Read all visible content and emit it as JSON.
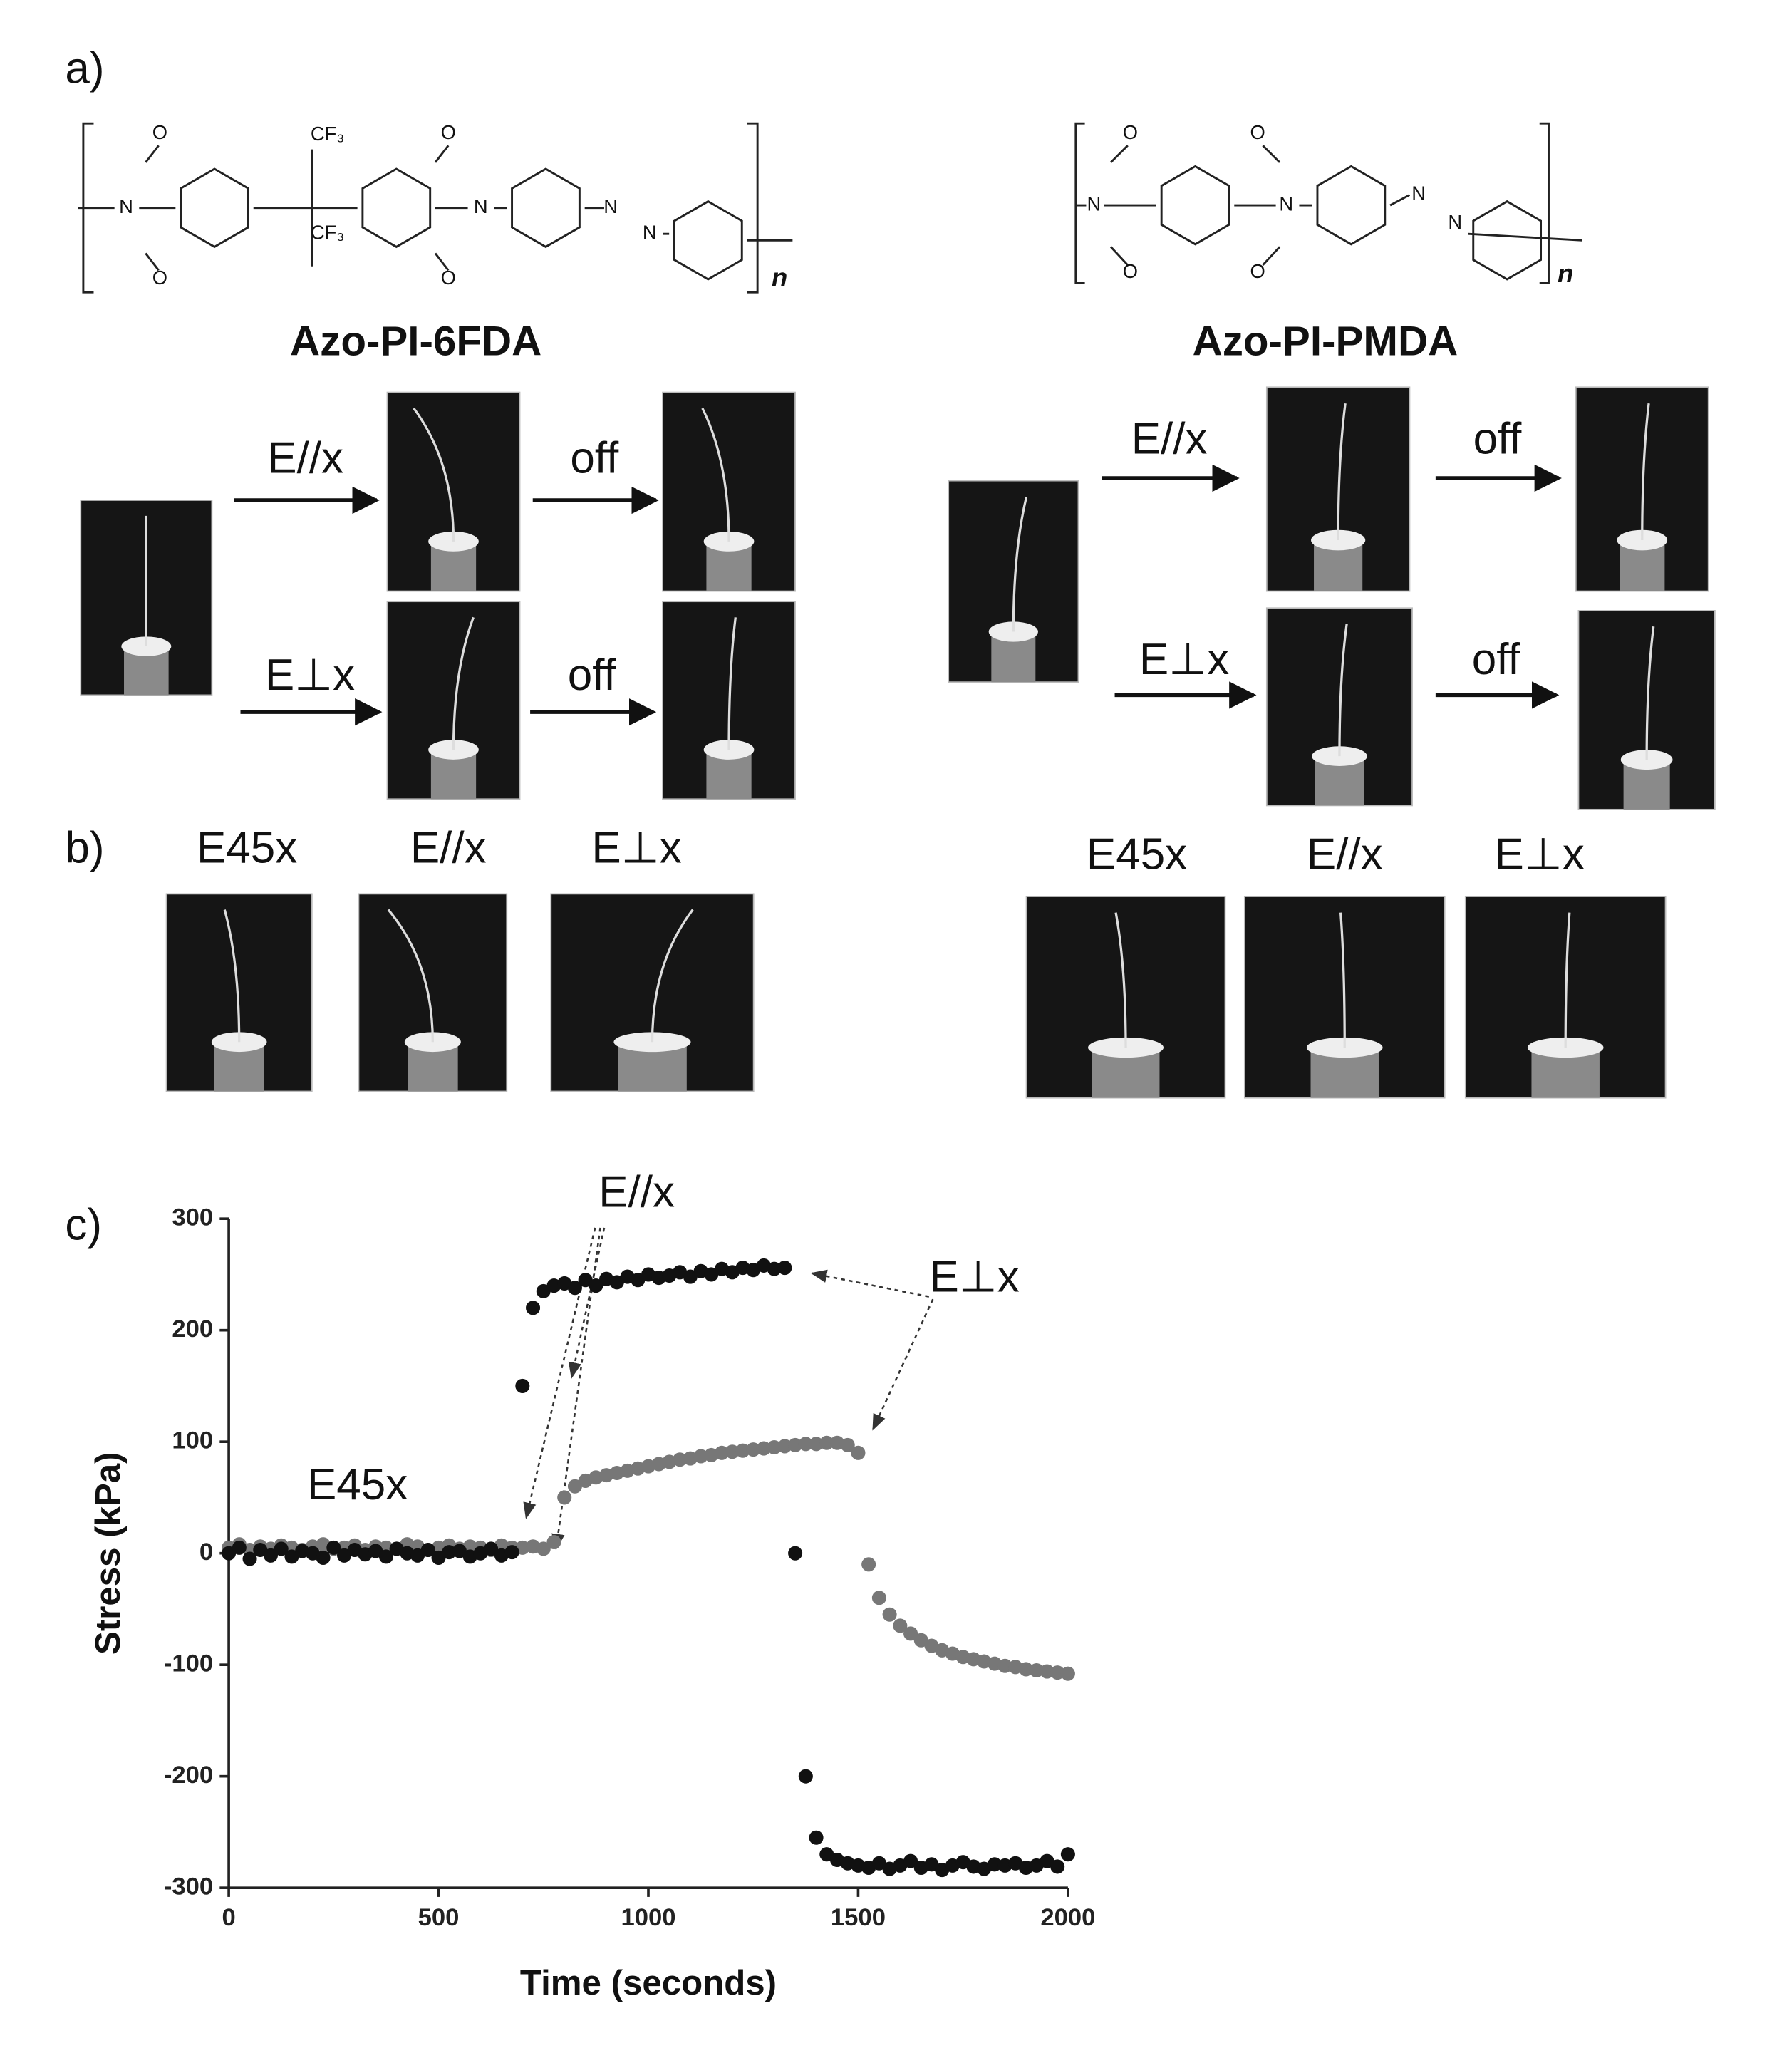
{
  "panel_a": {
    "label": "a)",
    "left": {
      "name": "Azo-PI-6FDA",
      "atoms": [
        "O",
        "O",
        "CF₃",
        "CF₃",
        "O",
        "O",
        "N",
        "N",
        "N",
        "N",
        "n"
      ],
      "rows": [
        [
          "E//x",
          "off"
        ],
        [
          "E⊥x",
          "off"
        ]
      ]
    },
    "right": {
      "name": "Azo-PI-PMDA",
      "atoms": [
        "O",
        "O",
        "O",
        "O",
        "N",
        "N",
        "N",
        "N",
        "n"
      ],
      "rows": [
        [
          "E//x",
          "off"
        ],
        [
          "E⊥x",
          "off"
        ]
      ]
    }
  },
  "panel_b": {
    "label": "b)",
    "left": [
      "E45x",
      "E//x",
      "E⊥x"
    ],
    "right": [
      "E45x",
      "E//x",
      "E⊥x"
    ]
  },
  "chart_data": {
    "type": "scatter",
    "panel_label": "c)",
    "xlabel": "Time (seconds)",
    "ylabel": "Stress (kPa)",
    "annotations": [
      "E//x",
      "E⊥x",
      "E45x"
    ],
    "xlim": [
      0,
      2000
    ],
    "ylim": [
      -300,
      300
    ],
    "xticks": [
      0,
      500,
      1000,
      1500,
      2000
    ],
    "yticks": [
      -300,
      -200,
      -100,
      0,
      100,
      200,
      300
    ],
    "x": [
      0,
      25,
      50,
      75,
      100,
      125,
      150,
      175,
      200,
      225,
      250,
      275,
      300,
      325,
      350,
      375,
      400,
      425,
      450,
      475,
      500,
      525,
      550,
      575,
      600,
      625,
      650,
      675,
      700,
      725,
      750,
      775,
      800,
      825,
      850,
      875,
      900,
      925,
      950,
      975,
      1000,
      1025,
      1050,
      1075,
      1100,
      1125,
      1150,
      1175,
      1200,
      1225,
      1250,
      1275,
      1300,
      1325,
      1350,
      1375,
      1400,
      1425,
      1450,
      1475,
      1500,
      1525,
      1550,
      1575,
      1600,
      1625,
      1650,
      1675,
      1700,
      1725,
      1750,
      1775,
      1800,
      1825,
      1850,
      1875,
      1900,
      1925,
      1950,
      1975,
      2000
    ],
    "series": [
      {
        "color": "#777777",
        "values": [
          5,
          8,
          3,
          6,
          4,
          7,
          5,
          3,
          6,
          8,
          4,
          5,
          7,
          3,
          6,
          5,
          4,
          8,
          6,
          3,
          5,
          7,
          4,
          6,
          5,
          3,
          7,
          5,
          5,
          6,
          4,
          10,
          50,
          60,
          65,
          68,
          70,
          72,
          74,
          76,
          78,
          80,
          82,
          84,
          85,
          87,
          88,
          90,
          91,
          92,
          93,
          94,
          95,
          96,
          97,
          98,
          98,
          99,
          99,
          97,
          90,
          -10,
          -40,
          -55,
          -65,
          -72,
          -78,
          -83,
          -87,
          -90,
          -93,
          -95,
          -97,
          -99,
          -101,
          -102,
          -104,
          -105,
          -106,
          -107,
          -108
        ]
      },
      {
        "color": "#111111",
        "values": [
          0,
          5,
          -5,
          3,
          -2,
          4,
          -3,
          2,
          0,
          -4,
          5,
          -2,
          3,
          -1,
          2,
          -3,
          4,
          0,
          -2,
          3,
          -4,
          1,
          2,
          -3,
          0,
          4,
          -2,
          1,
          150,
          220,
          235,
          240,
          242,
          238,
          245,
          240,
          246,
          243,
          248,
          245,
          250,
          247,
          249,
          252,
          248,
          253,
          250,
          255,
          252,
          256,
          254,
          258,
          255,
          256,
          0,
          -200,
          -255,
          -270,
          -275,
          -278,
          -280,
          -282,
          -278,
          -283,
          -280,
          -276,
          -282,
          -279,
          -284,
          -280,
          -277,
          -281,
          -283,
          -279,
          -280,
          -278,
          -282,
          -280,
          -276,
          -281,
          -270
        ]
      }
    ]
  }
}
